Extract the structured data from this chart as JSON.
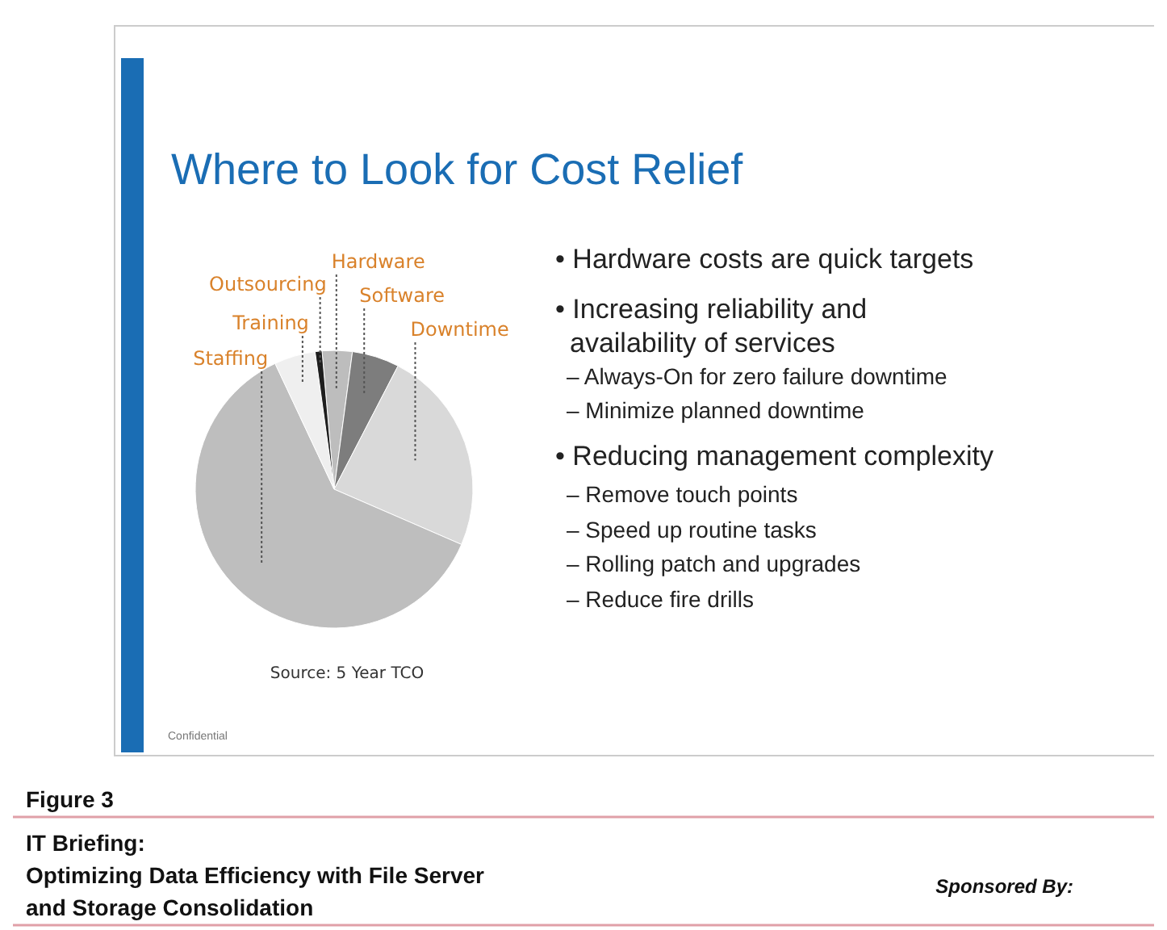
{
  "chart_data": {
    "type": "pie",
    "title": "Where to Look for Cost Relief",
    "categories": [
      "Hardware",
      "Software",
      "Downtime",
      "Staffing",
      "Training",
      "Outsourcing"
    ],
    "values": [
      3.5,
      5.5,
      23.9,
      61.5,
      4.8,
      0.8
    ],
    "colors": [
      "#bdbdbd",
      "#7d7d7d",
      "#d9d9d9",
      "#bebebe",
      "#efefef",
      "#1e1e1e"
    ],
    "annotations": [
      "• Hardware costs are quick targets",
      "• Increasing reliability and availability of services",
      "– Always-On for zero failure downtime",
      "– Minimize planned downtime",
      "• Reducing management complexity",
      "– Remove touch points",
      "– Speed up routine tasks",
      "– Rolling patch and upgrades",
      "– Reduce fire drills",
      "Source: 5 Year TCO",
      "Confidential",
      "Figure 3",
      "IT Briefing:",
      "Optimizing Data Efficiency with File Server and Storage Consolidation",
      "Sponsored By:"
    ]
  }
}
